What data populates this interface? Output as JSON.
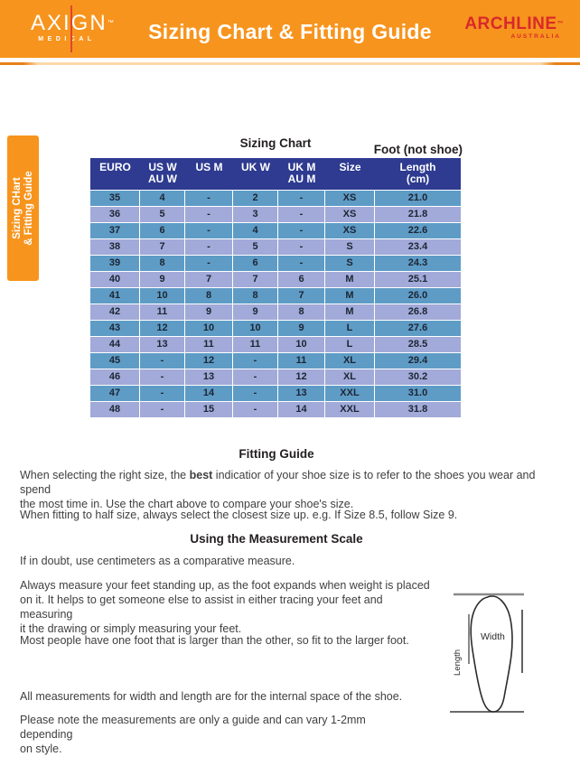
{
  "colors": {
    "orange": "#F7941D",
    "navy": "#2E3B90",
    "teal": "#5E9CC6",
    "peri": "#A1AAD8",
    "red": "#D9292B",
    "logoline": "#E0462B"
  },
  "header": {
    "axign_name": "AXIGN",
    "axign_tm": "™",
    "axign_sub": "MEDICAL",
    "title": "Sizing Chart & Fitting Guide",
    "archline_name": "ARCHLINE",
    "archline_tm": "™",
    "archline_sub": "AUSTRALIA"
  },
  "side_tab": {
    "line1": "Sizing CHart",
    "line2": "& Fitting Guide"
  },
  "chart": {
    "title": "Sizing Chart",
    "foot_note": "Foot (not shoe)"
  },
  "sizing_table": {
    "columns": [
      {
        "l1": "EURO",
        "l2": ""
      },
      {
        "l1": "US W",
        "l2": "AU W"
      },
      {
        "l1": "US M",
        "l2": ""
      },
      {
        "l1": "UK W",
        "l2": ""
      },
      {
        "l1": "UK M",
        "l2": "AU M"
      },
      {
        "l1": "Size",
        "l2": ""
      },
      {
        "l1": "Length",
        "l2": "(cm)"
      }
    ],
    "rows": [
      [
        "35",
        "4",
        "-",
        "2",
        "-",
        "XS",
        "21.0"
      ],
      [
        "36",
        "5",
        "-",
        "3",
        "-",
        "XS",
        "21.8"
      ],
      [
        "37",
        "6",
        "-",
        "4",
        "-",
        "XS",
        "22.6"
      ],
      [
        "38",
        "7",
        "-",
        "5",
        "-",
        "S",
        "23.4"
      ],
      [
        "39",
        "8",
        "-",
        "6",
        "-",
        "S",
        "24.3"
      ],
      [
        "40",
        "9",
        "7",
        "7",
        "6",
        "M",
        "25.1"
      ],
      [
        "41",
        "10",
        "8",
        "8",
        "7",
        "M",
        "26.0"
      ],
      [
        "42",
        "11",
        "9",
        "9",
        "8",
        "M",
        "26.8"
      ],
      [
        "43",
        "12",
        "10",
        "10",
        "9",
        "L",
        "27.6"
      ],
      [
        "44",
        "13",
        "11",
        "11",
        "10",
        "L",
        "28.5"
      ],
      [
        "45",
        "-",
        "12",
        "-",
        "11",
        "XL",
        "29.4"
      ],
      [
        "46",
        "-",
        "13",
        "-",
        "12",
        "XL",
        "30.2"
      ],
      [
        "47",
        "-",
        "14",
        "-",
        "13",
        "XXL",
        "31.0"
      ],
      [
        "48",
        "-",
        "15",
        "-",
        "14",
        "XXL",
        "31.8"
      ]
    ]
  },
  "fitting": {
    "heading": "Fitting Guide",
    "p1_pre": "When selecting the right size, the ",
    "p1_bold": "best",
    "p1_post": " indicatior of your shoe size is to refer to the shoes you wear and spend",
    "p1_line2": "the most time in. Use the chart above to compare your shoe's size.",
    "p2": "When fitting to half size, always select the closest size up. e.g. If Size 8.5, follow Size 9."
  },
  "measure": {
    "heading": "Using the Measurement Scale",
    "p1": "If in doubt, use centimeters as a comparative measure.",
    "p2_lines": [
      "Always measure your feet standing up, as the foot expands when weight is placed",
      "on it. It helps to get someone else to assist in either tracing your feet and measuring",
      "it the drawing or simply measuring your feet."
    ],
    "p3": "Most people have one foot that is larger than the other, so fit to the larger foot."
  },
  "notes": {
    "p1": "All measurements for width and length are for the internal space of the shoe.",
    "p2_lines": [
      "Please note the measurements are only a guide and can vary 1-2mm depending",
      "on style."
    ]
  },
  "diagram": {
    "width_label": "Width",
    "length_label": "Length"
  }
}
